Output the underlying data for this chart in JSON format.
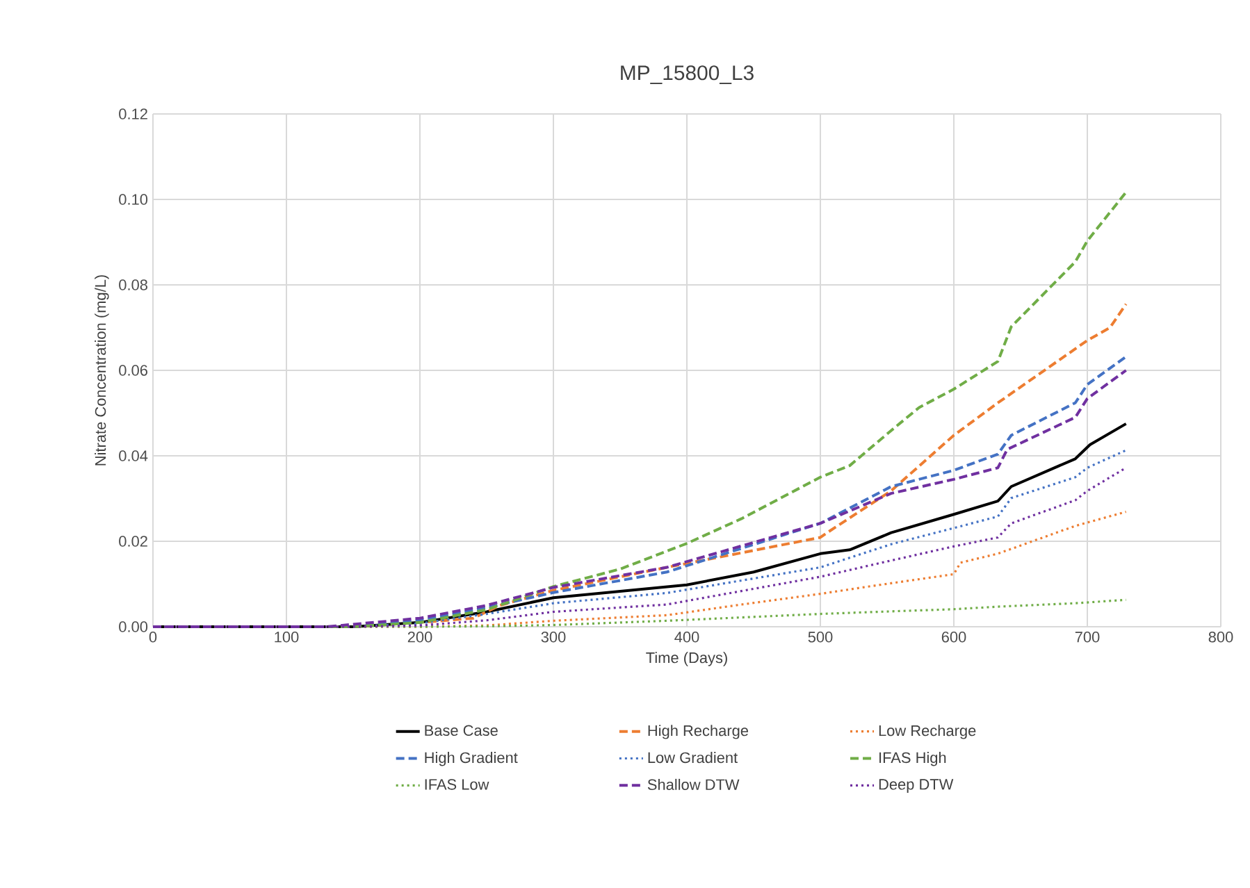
{
  "chart_data": {
    "type": "line",
    "title": "MP_15800_L3",
    "xlabel": "Time (Days)",
    "ylabel": "Nitrate Concentration (mg/L)",
    "xlim": [
      0,
      800
    ],
    "xticks": [
      0,
      100,
      200,
      300,
      400,
      500,
      600,
      700,
      800
    ],
    "ylim": [
      0,
      0.12
    ],
    "yticks": [
      {
        "value": 0,
        "label": "0.00"
      },
      {
        "value": 0.02,
        "label": "0.02"
      },
      {
        "value": 0.04,
        "label": "0.04"
      },
      {
        "value": 0.06,
        "label": "0.06"
      },
      {
        "value": 0.08,
        "label": "0.08"
      },
      {
        "value": 0.1,
        "label": "0.10"
      },
      {
        "value": 0.12,
        "label": "0.12"
      }
    ],
    "grid": true,
    "legend": "bottom",
    "marker": "none",
    "series": [
      {
        "name": "Base Case",
        "color": "#000000",
        "line_style": "solid",
        "x": [
          0,
          150,
          200,
          250,
          300,
          350,
          400,
          450,
          500,
          522,
          553,
          600,
          633,
          643,
          691,
          702,
          729
        ],
        "values": [
          0,
          0,
          0.001,
          0.0035,
          0.0068,
          0.0083,
          0.0098,
          0.0128,
          0.0171,
          0.018,
          0.022,
          0.0263,
          0.0294,
          0.0328,
          0.0393,
          0.0426,
          0.0475
        ]
      },
      {
        "name": "High Recharge",
        "color": "#ed7d31",
        "line_style": "dashed",
        "x": [
          0,
          150,
          200,
          240,
          260,
          300,
          385,
          500,
          505,
          553,
          600,
          633,
          700,
          717,
          729
        ],
        "values": [
          0,
          0,
          0.001,
          0.002,
          0.005,
          0.0085,
          0.0139,
          0.0209,
          0.022,
          0.0318,
          0.0448,
          0.0524,
          0.067,
          0.07,
          0.0755
        ]
      },
      {
        "name": "Low Recharge",
        "color": "#ed7d31",
        "line_style": "dotted",
        "x": [
          0,
          200,
          250,
          300,
          385,
          441,
          500,
          538,
          600,
          605,
          633,
          691,
          729
        ],
        "values": [
          0,
          0,
          0.0003,
          0.0014,
          0.0027,
          0.0052,
          0.0077,
          0.0095,
          0.0123,
          0.015,
          0.0171,
          0.0236,
          0.0269
        ]
      },
      {
        "name": "High Gradient",
        "color": "#4472c4",
        "line_style": "dashed",
        "x": [
          0,
          150,
          200,
          250,
          300,
          385,
          500,
          553,
          600,
          633,
          643,
          691,
          700,
          729
        ],
        "values": [
          0,
          0,
          0.0015,
          0.0045,
          0.008,
          0.0128,
          0.0242,
          0.0328,
          0.0366,
          0.0404,
          0.0448,
          0.0524,
          0.0567,
          0.0632
        ]
      },
      {
        "name": "Low Gradient",
        "color": "#4472c4",
        "line_style": "dotted",
        "x": [
          0,
          150,
          200,
          250,
          300,
          385,
          500,
          553,
          600,
          633,
          643,
          691,
          700,
          729
        ],
        "values": [
          0,
          0,
          0.0008,
          0.003,
          0.0055,
          0.0079,
          0.0139,
          0.0193,
          0.0231,
          0.0258,
          0.0301,
          0.035,
          0.0372,
          0.0413
        ]
      },
      {
        "name": "IFAS High",
        "color": "#70ad47",
        "line_style": "dashed",
        "x": [
          0,
          150,
          200,
          250,
          300,
          350,
          400,
          441,
          500,
          522,
          553,
          574,
          600,
          633,
          643,
          691,
          700,
          729
        ],
        "values": [
          0,
          0,
          0.001,
          0.004,
          0.0094,
          0.0135,
          0.0195,
          0.0253,
          0.035,
          0.0377,
          0.0459,
          0.0513,
          0.0556,
          0.0621,
          0.0702,
          0.0854,
          0.0903,
          0.1017
        ]
      },
      {
        "name": "IFAS Low",
        "color": "#70ad47",
        "line_style": "dotted",
        "x": [
          0,
          200,
          250,
          300,
          385,
          500,
          553,
          600,
          633,
          691,
          729
        ],
        "values": [
          0,
          0,
          0.0001,
          0.0004,
          0.0014,
          0.003,
          0.0036,
          0.0041,
          0.0047,
          0.0055,
          0.0063
        ]
      },
      {
        "name": "Shallow DTW",
        "color": "#7030a0",
        "line_style": "dashed",
        "x": [
          0,
          130,
          200,
          250,
          300,
          385,
          500,
          553,
          600,
          633,
          640,
          691,
          700,
          729
        ],
        "values": [
          0,
          0,
          0.002,
          0.005,
          0.0092,
          0.0139,
          0.0242,
          0.0312,
          0.0345,
          0.0372,
          0.0415,
          0.049,
          0.0534,
          0.06
        ]
      },
      {
        "name": "Deep DTW",
        "color": "#7030a0",
        "line_style": "dotted",
        "x": [
          0,
          150,
          200,
          250,
          300,
          385,
          500,
          553,
          600,
          633,
          643,
          691,
          700,
          729
        ],
        "values": [
          0,
          0,
          0.0003,
          0.0015,
          0.0035,
          0.0052,
          0.0117,
          0.0155,
          0.0188,
          0.0209,
          0.0242,
          0.0296,
          0.0318,
          0.0372
        ]
      }
    ]
  }
}
